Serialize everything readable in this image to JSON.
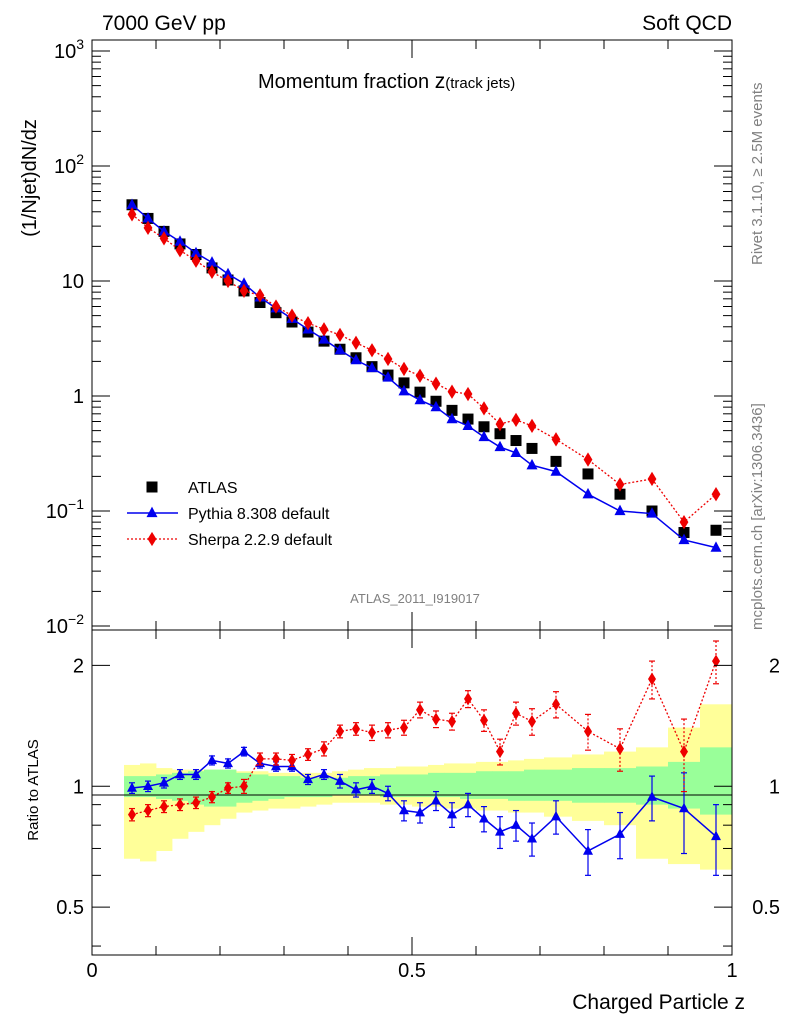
{
  "header": {
    "left": "7000 GeV pp",
    "right": "Soft QCD",
    "title_main": "Momentum fraction ",
    "title_z": "z",
    "title_sub": "(track jets)",
    "analysis": "ATLAS_2011_I919017",
    "side_rivet": "Rivet 3.1.10, ≥ 2.5M events",
    "side_mcplots": "mcplots.cern.ch [arXiv:1306.3436]"
  },
  "chart_data": [
    {
      "type": "scatter",
      "ylabel": "(1/Njet)dN/dz",
      "xlim": [
        0,
        1
      ],
      "ylim": [
        0.01,
        1000
      ],
      "yscale": "log",
      "y_tick_labels": [
        {
          "base": "10",
          "exp": "−2",
          "v": 0.01
        },
        {
          "base": "10",
          "exp": "−1",
          "v": 0.1
        },
        {
          "base": "1",
          "exp": "",
          "v": 1
        },
        {
          "base": "10",
          "exp": "",
          "v": 10
        },
        {
          "base": "10",
          "exp": "2",
          "v": 100
        },
        {
          "base": "10",
          "exp": "3",
          "v": 1000
        }
      ],
      "legend_position": "bottom-left",
      "x": [
        0.0625,
        0.0875,
        0.1125,
        0.1375,
        0.1625,
        0.1875,
        0.2125,
        0.2375,
        0.2625,
        0.2875,
        0.3125,
        0.3375,
        0.3625,
        0.3875,
        0.4125,
        0.4375,
        0.4625,
        0.4875,
        0.5125,
        0.5375,
        0.5625,
        0.5875,
        0.6125,
        0.6375,
        0.6625,
        0.6875,
        0.725,
        0.775,
        0.825,
        0.875,
        0.925,
        0.975
      ],
      "series": [
        {
          "name": "ATLAS",
          "color": "#000000",
          "marker": "square",
          "values": [
            46,
            35,
            27,
            21,
            17,
            13,
            10.2,
            8.2,
            6.5,
            5.3,
            4.4,
            3.6,
            3.0,
            2.55,
            2.15,
            1.8,
            1.52,
            1.3,
            1.08,
            0.9,
            0.75,
            0.63,
            0.54,
            0.47,
            0.41,
            0.35,
            0.27,
            0.21,
            0.14,
            0.1,
            0.065,
            0.068
          ]
        },
        {
          "name": "Pythia 8.308 default",
          "color": "#0000ee",
          "marker": "triangle",
          "line": "solid",
          "values": [
            46,
            35,
            27,
            22,
            17.5,
            14.5,
            11.5,
            9.5,
            7.2,
            5.8,
            4.7,
            3.8,
            3.1,
            2.5,
            2.05,
            1.75,
            1.45,
            1.1,
            0.92,
            0.8,
            0.63,
            0.55,
            0.44,
            0.36,
            0.32,
            0.25,
            0.22,
            0.14,
            0.1,
            0.095,
            0.056,
            0.048
          ]
        },
        {
          "name": "Sherpa 2.2.9 default",
          "color": "#ee0000",
          "marker": "diamond",
          "line": "dotted",
          "values": [
            38,
            29,
            23.5,
            18.5,
            15,
            12,
            10,
            8.2,
            7.5,
            6.0,
            5.0,
            4.3,
            3.8,
            3.4,
            2.9,
            2.5,
            2.1,
            1.72,
            1.5,
            1.28,
            1.09,
            1.04,
            0.78,
            0.57,
            0.62,
            0.55,
            0.42,
            0.28,
            0.17,
            0.19,
            0.08,
            0.14
          ]
        }
      ]
    },
    {
      "type": "scatter",
      "ylabel": "Ratio to ATLAS",
      "xlabel": "Charged Particle z",
      "xlim": [
        0,
        1
      ],
      "ylim": [
        0.38,
        2.45
      ],
      "yscale": "log",
      "x_tick_labels": [
        {
          "label": "0",
          "v": 0
        },
        {
          "label": "0.5",
          "v": 0.5
        },
        {
          "label": "1",
          "v": 1
        }
      ],
      "y_tick_labels": [
        {
          "label": "0.5",
          "v": 0.5
        },
        {
          "label": "1",
          "v": 1
        },
        {
          "label": "2",
          "v": 2
        }
      ],
      "bands": {
        "green": [
          [
            0.94,
            1.06
          ],
          [
            0.94,
            1.06
          ],
          [
            0.93,
            1.07
          ],
          [
            0.92,
            1.08
          ],
          [
            0.9,
            1.09
          ],
          [
            0.89,
            1.1
          ],
          [
            0.89,
            1.1
          ],
          [
            0.91,
            1.08
          ],
          [
            0.92,
            1.07
          ],
          [
            0.93,
            1.06
          ],
          [
            0.94,
            1.06
          ],
          [
            0.94,
            1.05
          ],
          [
            0.94,
            1.05
          ],
          [
            0.95,
            1.05
          ],
          [
            0.95,
            1.06
          ],
          [
            0.95,
            1.06
          ],
          [
            0.94,
            1.07
          ],
          [
            0.94,
            1.07
          ],
          [
            0.94,
            1.07
          ],
          [
            0.94,
            1.08
          ],
          [
            0.94,
            1.08
          ],
          [
            0.93,
            1.08
          ],
          [
            0.93,
            1.09
          ],
          [
            0.93,
            1.09
          ],
          [
            0.92,
            1.09
          ],
          [
            0.92,
            1.1
          ],
          [
            0.92,
            1.1
          ],
          [
            0.91,
            1.11
          ],
          [
            0.91,
            1.11
          ],
          [
            0.9,
            1.12
          ],
          [
            0.88,
            1.15
          ],
          [
            0.85,
            1.25
          ]
        ],
        "yellow": [
          [
            0.66,
            1.13
          ],
          [
            0.65,
            1.14
          ],
          [
            0.69,
            1.11
          ],
          [
            0.74,
            1.1
          ],
          [
            0.77,
            1.1
          ],
          [
            0.8,
            1.1
          ],
          [
            0.83,
            1.1
          ],
          [
            0.86,
            1.09
          ],
          [
            0.87,
            1.09
          ],
          [
            0.88,
            1.08
          ],
          [
            0.88,
            1.08
          ],
          [
            0.89,
            1.08
          ],
          [
            0.9,
            1.08
          ],
          [
            0.91,
            1.09
          ],
          [
            0.91,
            1.1
          ],
          [
            0.91,
            1.11
          ],
          [
            0.9,
            1.11
          ],
          [
            0.9,
            1.12
          ],
          [
            0.89,
            1.12
          ],
          [
            0.89,
            1.13
          ],
          [
            0.88,
            1.14
          ],
          [
            0.88,
            1.14
          ],
          [
            0.87,
            1.15
          ],
          [
            0.87,
            1.15
          ],
          [
            0.86,
            1.16
          ],
          [
            0.86,
            1.17
          ],
          [
            0.84,
            1.18
          ],
          [
            0.82,
            1.2
          ],
          [
            0.8,
            1.22
          ],
          [
            0.66,
            1.25
          ],
          [
            0.64,
            1.4
          ],
          [
            0.62,
            1.6
          ]
        ]
      },
      "series": [
        {
          "name": "Pythia 8.308 default",
          "color": "#0000ee",
          "marker": "triangle",
          "line": "solid",
          "values": [
            0.99,
            1.0,
            1.02,
            1.07,
            1.07,
            1.16,
            1.14,
            1.22,
            1.14,
            1.12,
            1.12,
            1.04,
            1.07,
            1.03,
            0.98,
            1.0,
            0.96,
            0.87,
            0.86,
            0.92,
            0.85,
            0.9,
            0.83,
            0.77,
            0.8,
            0.74,
            0.84,
            0.69,
            0.76,
            0.94,
            0.88,
            0.75
          ],
          "err": [
            0.03,
            0.03,
            0.03,
            0.03,
            0.03,
            0.03,
            0.03,
            0.03,
            0.03,
            0.03,
            0.03,
            0.03,
            0.03,
            0.04,
            0.04,
            0.04,
            0.04,
            0.05,
            0.05,
            0.05,
            0.06,
            0.06,
            0.06,
            0.07,
            0.07,
            0.07,
            0.08,
            0.09,
            0.1,
            0.12,
            0.2,
            0.15
          ]
        },
        {
          "name": "Sherpa 2.2.9 default",
          "color": "#ee0000",
          "marker": "diamond",
          "line": "dotted",
          "values": [
            0.85,
            0.87,
            0.89,
            0.9,
            0.91,
            0.94,
            0.99,
            1.0,
            1.17,
            1.17,
            1.16,
            1.2,
            1.24,
            1.37,
            1.39,
            1.36,
            1.38,
            1.4,
            1.55,
            1.47,
            1.45,
            1.65,
            1.46,
            1.22,
            1.52,
            1.45,
            1.6,
            1.37,
            1.24,
            1.85,
            1.22,
            2.05
          ],
          "err": [
            0.03,
            0.03,
            0.03,
            0.03,
            0.03,
            0.03,
            0.03,
            0.04,
            0.04,
            0.04,
            0.04,
            0.04,
            0.05,
            0.05,
            0.05,
            0.06,
            0.06,
            0.06,
            0.07,
            0.07,
            0.07,
            0.08,
            0.09,
            0.09,
            0.1,
            0.11,
            0.12,
            0.14,
            0.15,
            0.2,
            0.25,
            0.25
          ]
        }
      ]
    }
  ]
}
